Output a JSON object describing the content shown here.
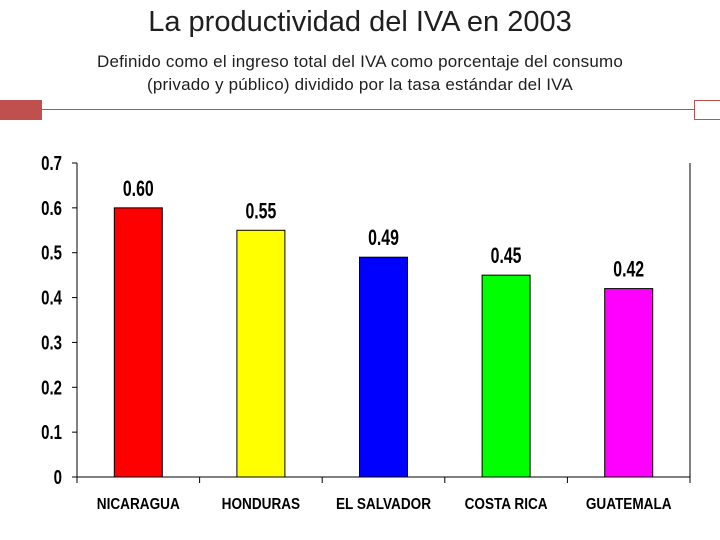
{
  "slide": {
    "title": "La productividad del IVA en 2003",
    "subtitle_line1": "Definido como el ingreso total del IVA como porcentaje del consumo",
    "subtitle_line2": "(privado y público) dividido por la tasa estándar del IVA"
  },
  "colors": {
    "accent": "#c0504d",
    "bars": [
      "#ff0000",
      "#ffff00",
      "#0000ff",
      "#00ff00",
      "#ff00ff"
    ]
  },
  "chart_data": {
    "type": "bar",
    "title": "",
    "xlabel": "",
    "ylabel": "",
    "categories": [
      "NICARAGUA",
      "HONDURAS",
      "EL SALVADOR",
      "COSTA RICA",
      "GUATEMALA"
    ],
    "values": [
      0.6,
      0.55,
      0.49,
      0.45,
      0.42
    ],
    "data_labels": [
      "0.60",
      "0.55",
      "0.49",
      "0.45",
      "0.42"
    ],
    "ylim": [
      0,
      0.7
    ],
    "yticks": [
      0,
      0.1,
      0.2,
      0.3,
      0.4,
      0.5,
      0.6,
      0.7
    ],
    "ytick_labels": [
      "0",
      "0.1",
      "0.2",
      "0.3",
      "0.4",
      "0.5",
      "0.6",
      "0.7"
    ],
    "grid": false,
    "legend": "none"
  }
}
